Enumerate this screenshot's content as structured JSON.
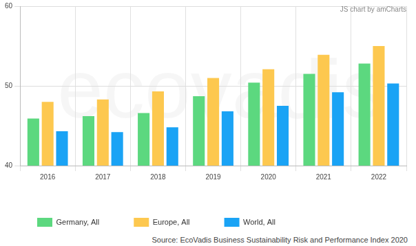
{
  "chart_data": {
    "type": "bar",
    "watermark": "ecovadis",
    "credit": "JS chart by amCharts",
    "source": "Source: EcoVadis Business Sustainability Risk and Performance Index 2020",
    "categories": [
      "2016",
      "2017",
      "2018",
      "2019",
      "2020",
      "2021",
      "2022"
    ],
    "series": [
      {
        "name": "Germany, All",
        "color": "#5cd87f",
        "values": [
          45.9,
          46.2,
          46.6,
          48.7,
          50.4,
          51.5,
          52.8
        ]
      },
      {
        "name": "Europe, All",
        "color": "#fdc84f",
        "values": [
          48.0,
          48.3,
          49.3,
          51.0,
          52.1,
          53.9,
          55.0
        ]
      },
      {
        "name": "World, All",
        "color": "#1aa3f5",
        "values": [
          44.3,
          44.2,
          44.8,
          46.8,
          47.5,
          49.2,
          50.3
        ]
      }
    ],
    "ylim": [
      40,
      60
    ],
    "yticks": [
      40,
      50,
      60
    ],
    "grid": true,
    "legend": "bottom"
  }
}
